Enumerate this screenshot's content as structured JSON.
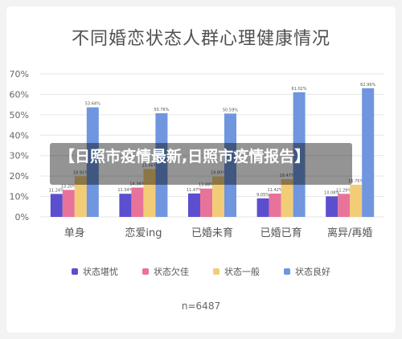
{
  "title": "不同婚恋状态人群心理健康情况",
  "banner": "【日照市疫情最新,日照市疫情报告】",
  "sample_note": "n=6487",
  "colors": {
    "s1": "#5b4fcf",
    "s2": "#e8739a",
    "s3": "#f3cc78",
    "s4": "#6f96df"
  },
  "chart_data": {
    "type": "bar",
    "title": "不同婚恋状态人群心理健康情况",
    "categories": [
      "单身",
      "恋爱ing",
      "已婚未育",
      "已婚已育",
      "离异/再婚"
    ],
    "ytick_labels": [
      "0%",
      "10%",
      "20%",
      "30%",
      "40%",
      "50%",
      "60%",
      "70%"
    ],
    "ylim": [
      0,
      70
    ],
    "grid": true,
    "legend_position": "bottom",
    "series": [
      {
        "name": "状态堪忧",
        "values": [
          11.24,
          11.34,
          11.47,
          9.05,
          10.08
        ],
        "labels": [
          "11.24%",
          "11.34%",
          "11.47%",
          "9.05%",
          "10.08%"
        ]
      },
      {
        "name": "状态欠佳",
        "values": [
          13.2,
          14.36,
          13.88,
          11.42,
          11.29
        ],
        "labels": [
          "13.20%",
          "14.36%",
          "13.88%",
          "11.42%",
          "11.29%"
        ]
      },
      {
        "name": "状态一般",
        "values": [
          19.91,
          23.46,
          19.8,
          18.47,
          15.75
        ],
        "labels": [
          "19.91%",
          "23.46%",
          "19.80%",
          "18.47%",
          "15.75%"
        ]
      },
      {
        "name": "状态良好",
        "values": [
          53.64,
          50.76,
          50.59,
          61.02,
          62.99
        ],
        "labels": [
          "53.64%",
          "50.76%",
          "50.59%",
          "61.02%",
          "62.99%"
        ]
      }
    ]
  }
}
